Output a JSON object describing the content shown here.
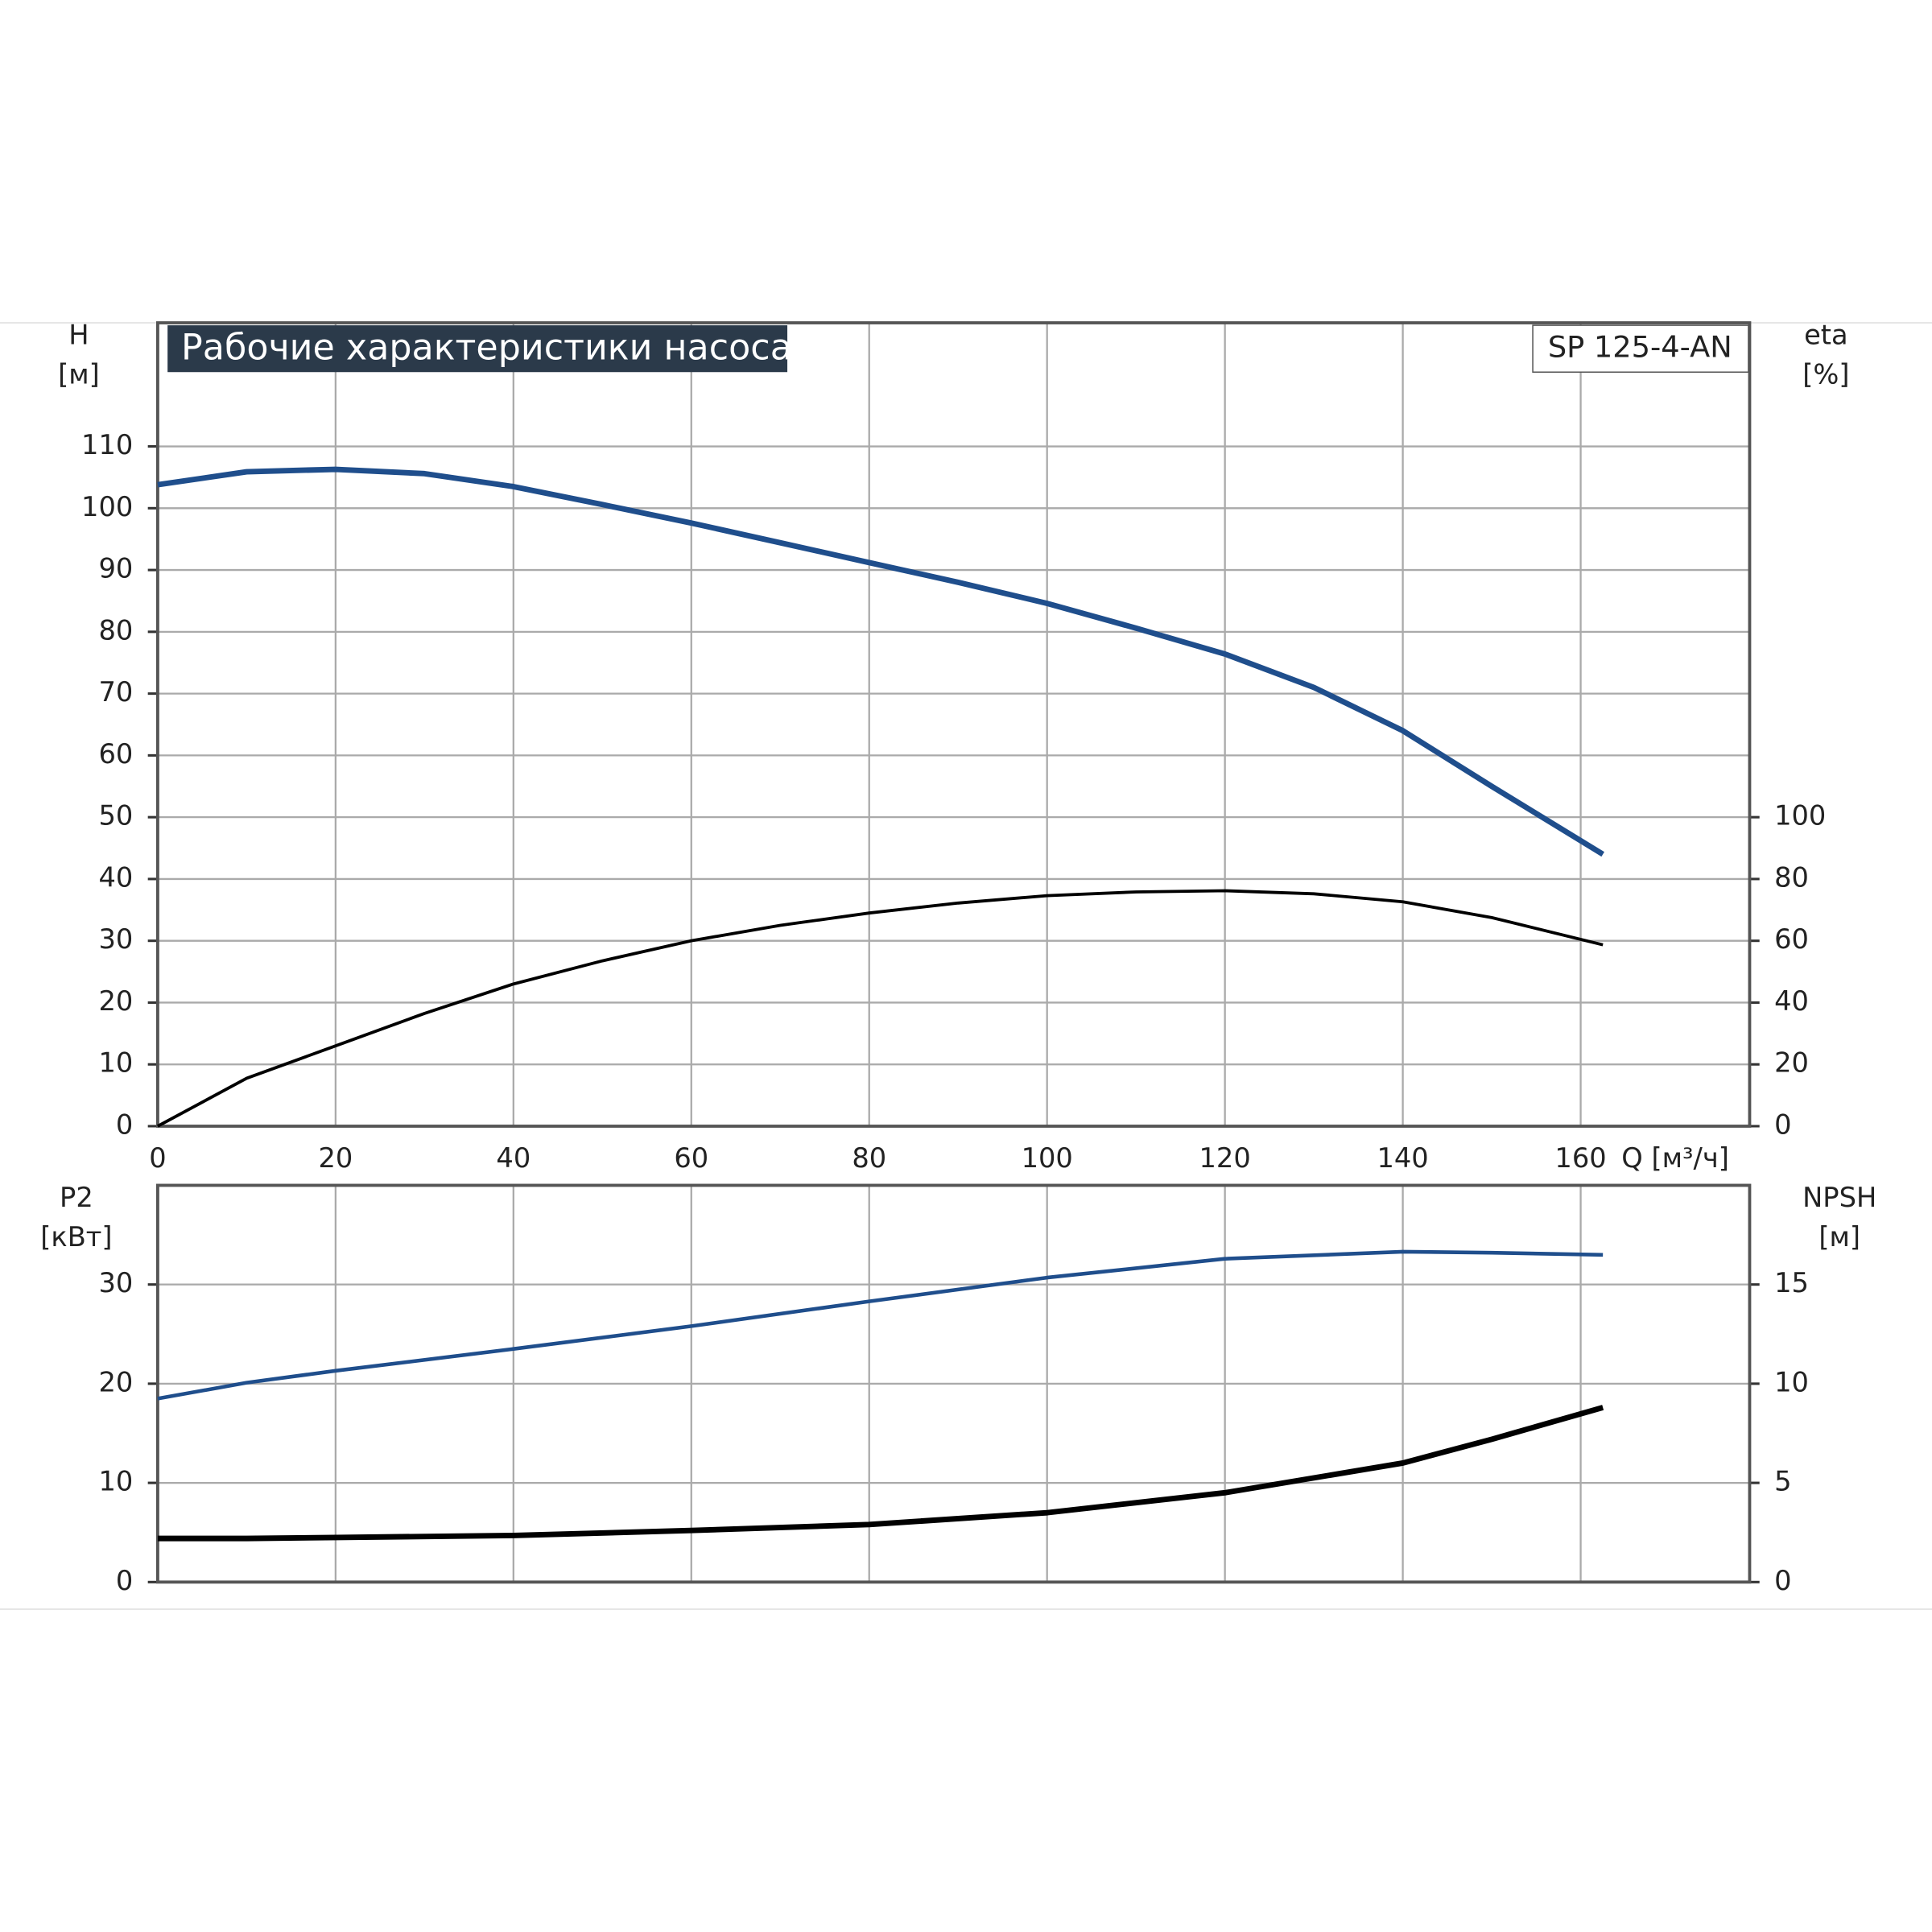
{
  "chart_data": [
    {
      "type": "line",
      "title": "Рабочие характеристики насоса",
      "model": "SP 125-4-AN",
      "ylabel": [
        "H",
        "[м]"
      ],
      "y2label": [
        "eta",
        "[%]"
      ],
      "xlabel": "Q [м³/ч]",
      "x": [
        0,
        10,
        20,
        30,
        40,
        50,
        60,
        70,
        80,
        90,
        100,
        110,
        120,
        130,
        140,
        150,
        162.5
      ],
      "xlim": [
        0,
        179
      ],
      "xticks": [
        0,
        20,
        40,
        60,
        80,
        100,
        120,
        140,
        160
      ],
      "ylim": [
        0,
        130
      ],
      "yticks": [
        0,
        10,
        20,
        30,
        40,
        50,
        60,
        70,
        80,
        90,
        100,
        110
      ],
      "y2lim": [
        0,
        260
      ],
      "y2ticks": [
        0,
        20,
        40,
        60,
        80,
        100
      ],
      "grid": true,
      "series": [
        {
          "color": "#1f4e8c",
          "values": [
            103.8,
            105.9,
            106.3,
            105.6,
            103.5,
            100.6,
            97.6,
            94.4,
            91.2,
            88,
            84.6,
            80.6,
            76.4,
            71,
            64,
            55,
            44
          ]
        },
        {
          "color": "#000000",
          "axis": "y2",
          "values": [
            0,
            15.5,
            26,
            36.5,
            46,
            53.5,
            60,
            65,
            69,
            72.2,
            74.6,
            75.8,
            76.2,
            75.2,
            72.6,
            67.5,
            58.7
          ]
        }
      ]
    },
    {
      "type": "line",
      "ylabel": [
        "P2",
        "[кВт]"
      ],
      "y2label": [
        "NPSH",
        "[м]"
      ],
      "x": [
        0,
        10,
        20,
        40,
        60,
        80,
        100,
        120,
        140,
        150,
        162.5
      ],
      "xlim": [
        0,
        179
      ],
      "xticks": [
        0,
        20,
        40,
        60,
        80,
        100,
        120,
        140,
        160
      ],
      "ylim": [
        0,
        40
      ],
      "yticks": [
        0,
        10,
        20,
        30
      ],
      "y2lim": [
        0,
        20
      ],
      "y2ticks": [
        0,
        5,
        10,
        15
      ],
      "grid": true,
      "series": [
        {
          "color": "#1f4e8c",
          "values": [
            18.5,
            20.1,
            21.3,
            23.5,
            25.8,
            28.3,
            30.7,
            32.6,
            33.3,
            33.2,
            33.0
          ]
        },
        {
          "color": "#000000",
          "axis": "y2",
          "values": [
            2.2,
            2.2,
            2.25,
            2.35,
            2.6,
            2.9,
            3.5,
            4.5,
            6.0,
            7.2,
            8.8
          ]
        }
      ]
    }
  ]
}
